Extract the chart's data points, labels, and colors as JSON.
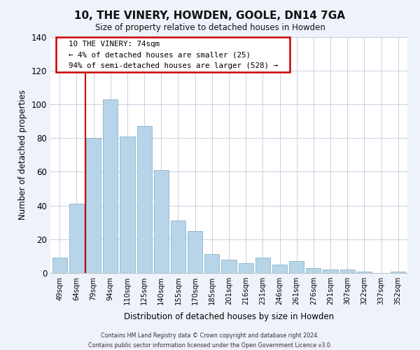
{
  "title": "10, THE VINERY, HOWDEN, GOOLE, DN14 7GA",
  "subtitle": "Size of property relative to detached houses in Howden",
  "xlabel": "Distribution of detached houses by size in Howden",
  "ylabel": "Number of detached properties",
  "bar_labels": [
    "49sqm",
    "64sqm",
    "79sqm",
    "94sqm",
    "110sqm",
    "125sqm",
    "140sqm",
    "155sqm",
    "170sqm",
    "185sqm",
    "201sqm",
    "216sqm",
    "231sqm",
    "246sqm",
    "261sqm",
    "276sqm",
    "291sqm",
    "307sqm",
    "322sqm",
    "337sqm",
    "352sqm"
  ],
  "bar_values": [
    9,
    41,
    80,
    103,
    81,
    87,
    61,
    31,
    25,
    11,
    8,
    6,
    9,
    5,
    7,
    3,
    2,
    2,
    1,
    0,
    1
  ],
  "bar_color": "#b8d4e8",
  "bar_edge_color": "#8ab4cc",
  "vline_color": "#cc0000",
  "ylim": [
    0,
    140
  ],
  "yticks": [
    0,
    20,
    40,
    60,
    80,
    100,
    120,
    140
  ],
  "annotation_title": "10 THE VINERY: 74sqm",
  "annotation_line1": "← 4% of detached houses are smaller (25)",
  "annotation_line2": "94% of semi-detached houses are larger (528) →",
  "annotation_box_color": "#ffffff",
  "annotation_box_edge": "#cc0000",
  "footer_line1": "Contains HM Land Registry data © Crown copyright and database right 2024.",
  "footer_line2": "Contains public sector information licensed under the Open Government Licence v3.0.",
  "background_color": "#eef2fa",
  "plot_background": "#ffffff",
  "grid_color": "#c8d0e0"
}
